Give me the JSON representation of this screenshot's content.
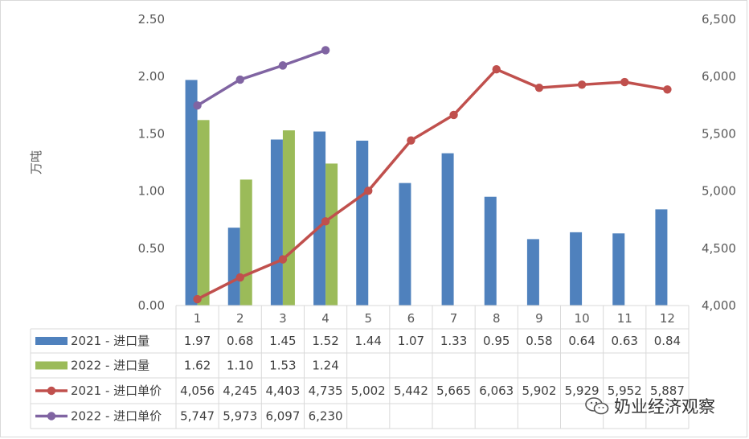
{
  "chart_data": {
    "type": "bar+line",
    "categories": [
      "1",
      "2",
      "3",
      "4",
      "5",
      "6",
      "7",
      "8",
      "9",
      "10",
      "11",
      "12"
    ],
    "ylabel_left": "万吨",
    "ylim_left": [
      0,
      2.5
    ],
    "yticks_left": [
      "0.00",
      "0.50",
      "1.00",
      "1.50",
      "2.00",
      "2.50"
    ],
    "ylim_right": [
      4000,
      6500
    ],
    "yticks_right": [
      "4,000",
      "4,500",
      "5,000",
      "5,500",
      "6,000",
      "6,500"
    ],
    "grid": false,
    "legend": "data-table",
    "series": [
      {
        "name": "2021 - 进口量",
        "kind": "bar",
        "axis": "left",
        "color": "#4f81bd",
        "values": [
          1.97,
          0.68,
          1.45,
          1.52,
          1.44,
          1.07,
          1.33,
          0.95,
          0.58,
          0.64,
          0.63,
          0.84
        ],
        "labels": [
          "1.97",
          "0.68",
          "1.45",
          "1.52",
          "1.44",
          "1.07",
          "1.33",
          "0.95",
          "0.58",
          "0.64",
          "0.63",
          "0.84"
        ]
      },
      {
        "name": "2022 - 进口量",
        "kind": "bar",
        "axis": "left",
        "color": "#9bbb59",
        "values": [
          1.62,
          1.1,
          1.53,
          1.24,
          null,
          null,
          null,
          null,
          null,
          null,
          null,
          null
        ],
        "labels": [
          "1.62",
          "1.10",
          "1.53",
          "1.24",
          "",
          "",
          "",
          "",
          "",
          "",
          "",
          ""
        ]
      },
      {
        "name": "2021 - 进口单价",
        "kind": "line",
        "axis": "right",
        "color": "#c0504d",
        "values": [
          4056,
          4245,
          4403,
          4735,
          5002,
          5442,
          5665,
          6063,
          5902,
          5929,
          5952,
          5887
        ],
        "labels": [
          "4,056",
          "4,245",
          "4,403",
          "4,735",
          "5,002",
          "5,442",
          "5,665",
          "6,063",
          "5,902",
          "5,929",
          "5,952",
          "5,887"
        ]
      },
      {
        "name": "2022 - 进口单价",
        "kind": "line",
        "axis": "right",
        "color": "#8064a2",
        "values": [
          5747,
          5973,
          6097,
          6230,
          null,
          null,
          null,
          null,
          null,
          null,
          null,
          null
        ],
        "labels": [
          "5,747",
          "5,973",
          "6,097",
          "6,230",
          "",
          "",
          "",
          "",
          "",
          "",
          "",
          ""
        ]
      }
    ]
  },
  "watermark": {
    "text": "奶业经济观察",
    "icon": "wechat-icon"
  }
}
